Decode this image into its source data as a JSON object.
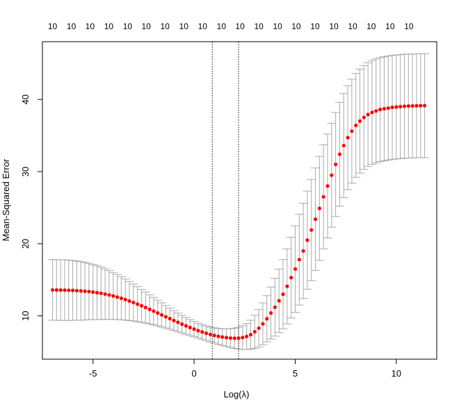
{
  "chart_data": {
    "type": "scatter",
    "xlabel": "Log(λ)",
    "ylabel": "Mean-Squared Error",
    "xlim": [
      -7.5,
      12.0
    ],
    "ylim": [
      4.0,
      48.0
    ],
    "x_ticks": [
      -5,
      0,
      5,
      10
    ],
    "y_ticks": [
      10,
      20,
      30,
      40
    ],
    "top_axis_labels": [
      "10",
      "10",
      "10",
      "10",
      "10",
      "10",
      "10",
      "10",
      "10",
      "10",
      "10",
      "10",
      "10",
      "10",
      "10",
      "10",
      "10",
      "10",
      "10",
      "10"
    ],
    "top_axis_positions": [
      -7.0,
      -6.07,
      -5.15,
      -4.22,
      -3.29,
      -2.37,
      -1.44,
      -0.51,
      0.42,
      1.35,
      2.27,
      3.2,
      4.13,
      5.05,
      5.98,
      6.91,
      7.84,
      8.76,
      9.69,
      10.62
    ],
    "vlines": [
      0.9,
      2.2
    ],
    "points_color": "#ff0000",
    "errorbar_color": "#a9a9a9",
    "x": [
      -7.0,
      -6.8,
      -6.6,
      -6.4,
      -6.2,
      -6.0,
      -5.8,
      -5.6,
      -5.4,
      -5.2,
      -5.0,
      -4.8,
      -4.6,
      -4.4,
      -4.2,
      -4.0,
      -3.8,
      -3.6,
      -3.4,
      -3.2,
      -3.0,
      -2.8,
      -2.6,
      -2.4,
      -2.2,
      -2.0,
      -1.8,
      -1.6,
      -1.4,
      -1.2,
      -1.0,
      -0.8,
      -0.6,
      -0.4,
      -0.2,
      0.0,
      0.2,
      0.4,
      0.6,
      0.8,
      1.0,
      1.2,
      1.4,
      1.6,
      1.8,
      2.0,
      2.2,
      2.4,
      2.6,
      2.8,
      3.0,
      3.2,
      3.4,
      3.6,
      3.8,
      4.0,
      4.2,
      4.4,
      4.6,
      4.8,
      5.0,
      5.2,
      5.4,
      5.6,
      5.8,
      6.0,
      6.2,
      6.4,
      6.6,
      6.8,
      7.0,
      7.2,
      7.4,
      7.6,
      7.8,
      8.0,
      8.2,
      8.4,
      8.6,
      8.8,
      9.0,
      9.2,
      9.4,
      9.6,
      9.8,
      10.0,
      10.2,
      10.4,
      10.6,
      10.8,
      11.0,
      11.2,
      11.4
    ],
    "y": [
      13.6,
      13.59,
      13.58,
      13.57,
      13.55,
      13.53,
      13.5,
      13.46,
      13.42,
      13.37,
      13.3,
      13.22,
      13.13,
      13.02,
      12.9,
      12.76,
      12.61,
      12.44,
      12.26,
      12.06,
      11.85,
      11.63,
      11.4,
      11.16,
      10.91,
      10.66,
      10.4,
      10.14,
      9.88,
      9.62,
      9.36,
      9.11,
      8.86,
      8.62,
      8.39,
      8.17,
      7.96,
      7.77,
      7.59,
      7.43,
      7.29,
      7.17,
      7.07,
      6.99,
      6.93,
      6.9,
      6.91,
      7.0,
      7.15,
      7.4,
      7.8,
      8.3,
      8.9,
      9.6,
      10.4,
      11.2,
      12.1,
      13.0,
      14.1,
      15.3,
      16.5,
      17.8,
      19.0,
      20.5,
      21.9,
      23.4,
      24.9,
      26.5,
      28.0,
      29.5,
      31.0,
      32.4,
      33.6,
      34.7,
      35.6,
      36.4,
      37.0,
      37.5,
      37.9,
      38.2,
      38.4,
      38.6,
      38.7,
      38.8,
      38.9,
      38.95,
      39.0,
      39.05,
      39.08,
      39.1,
      39.12,
      39.13,
      39.14
    ],
    "yerr": [
      4.2,
      4.2,
      4.2,
      4.2,
      4.18,
      4.15,
      4.1,
      4.05,
      3.98,
      3.9,
      3.82,
      3.72,
      3.62,
      3.5,
      3.38,
      3.25,
      3.12,
      2.98,
      2.84,
      2.7,
      2.56,
      2.42,
      2.28,
      2.15,
      2.02,
      1.9,
      1.78,
      1.67,
      1.56,
      1.46,
      1.37,
      1.29,
      1.22,
      1.16,
      1.1,
      1.05,
      1.02,
      1.0,
      1.0,
      1.02,
      1.05,
      1.1,
      1.15,
      1.22,
      1.3,
      1.4,
      1.5,
      1.65,
      1.8,
      2.0,
      2.3,
      2.6,
      2.9,
      3.2,
      3.6,
      4.0,
      4.4,
      4.8,
      5.2,
      5.6,
      6.0,
      6.3,
      6.6,
      6.8,
      7.0,
      7.1,
      7.2,
      7.2,
      7.2,
      7.2,
      7.2,
      7.2,
      7.2,
      7.2,
      7.2,
      7.2,
      7.2,
      7.2,
      7.2,
      7.2,
      7.2,
      7.2,
      7.2,
      7.2,
      7.2,
      7.2,
      7.2,
      7.2,
      7.2,
      7.2,
      7.2,
      7.2,
      7.2
    ]
  }
}
